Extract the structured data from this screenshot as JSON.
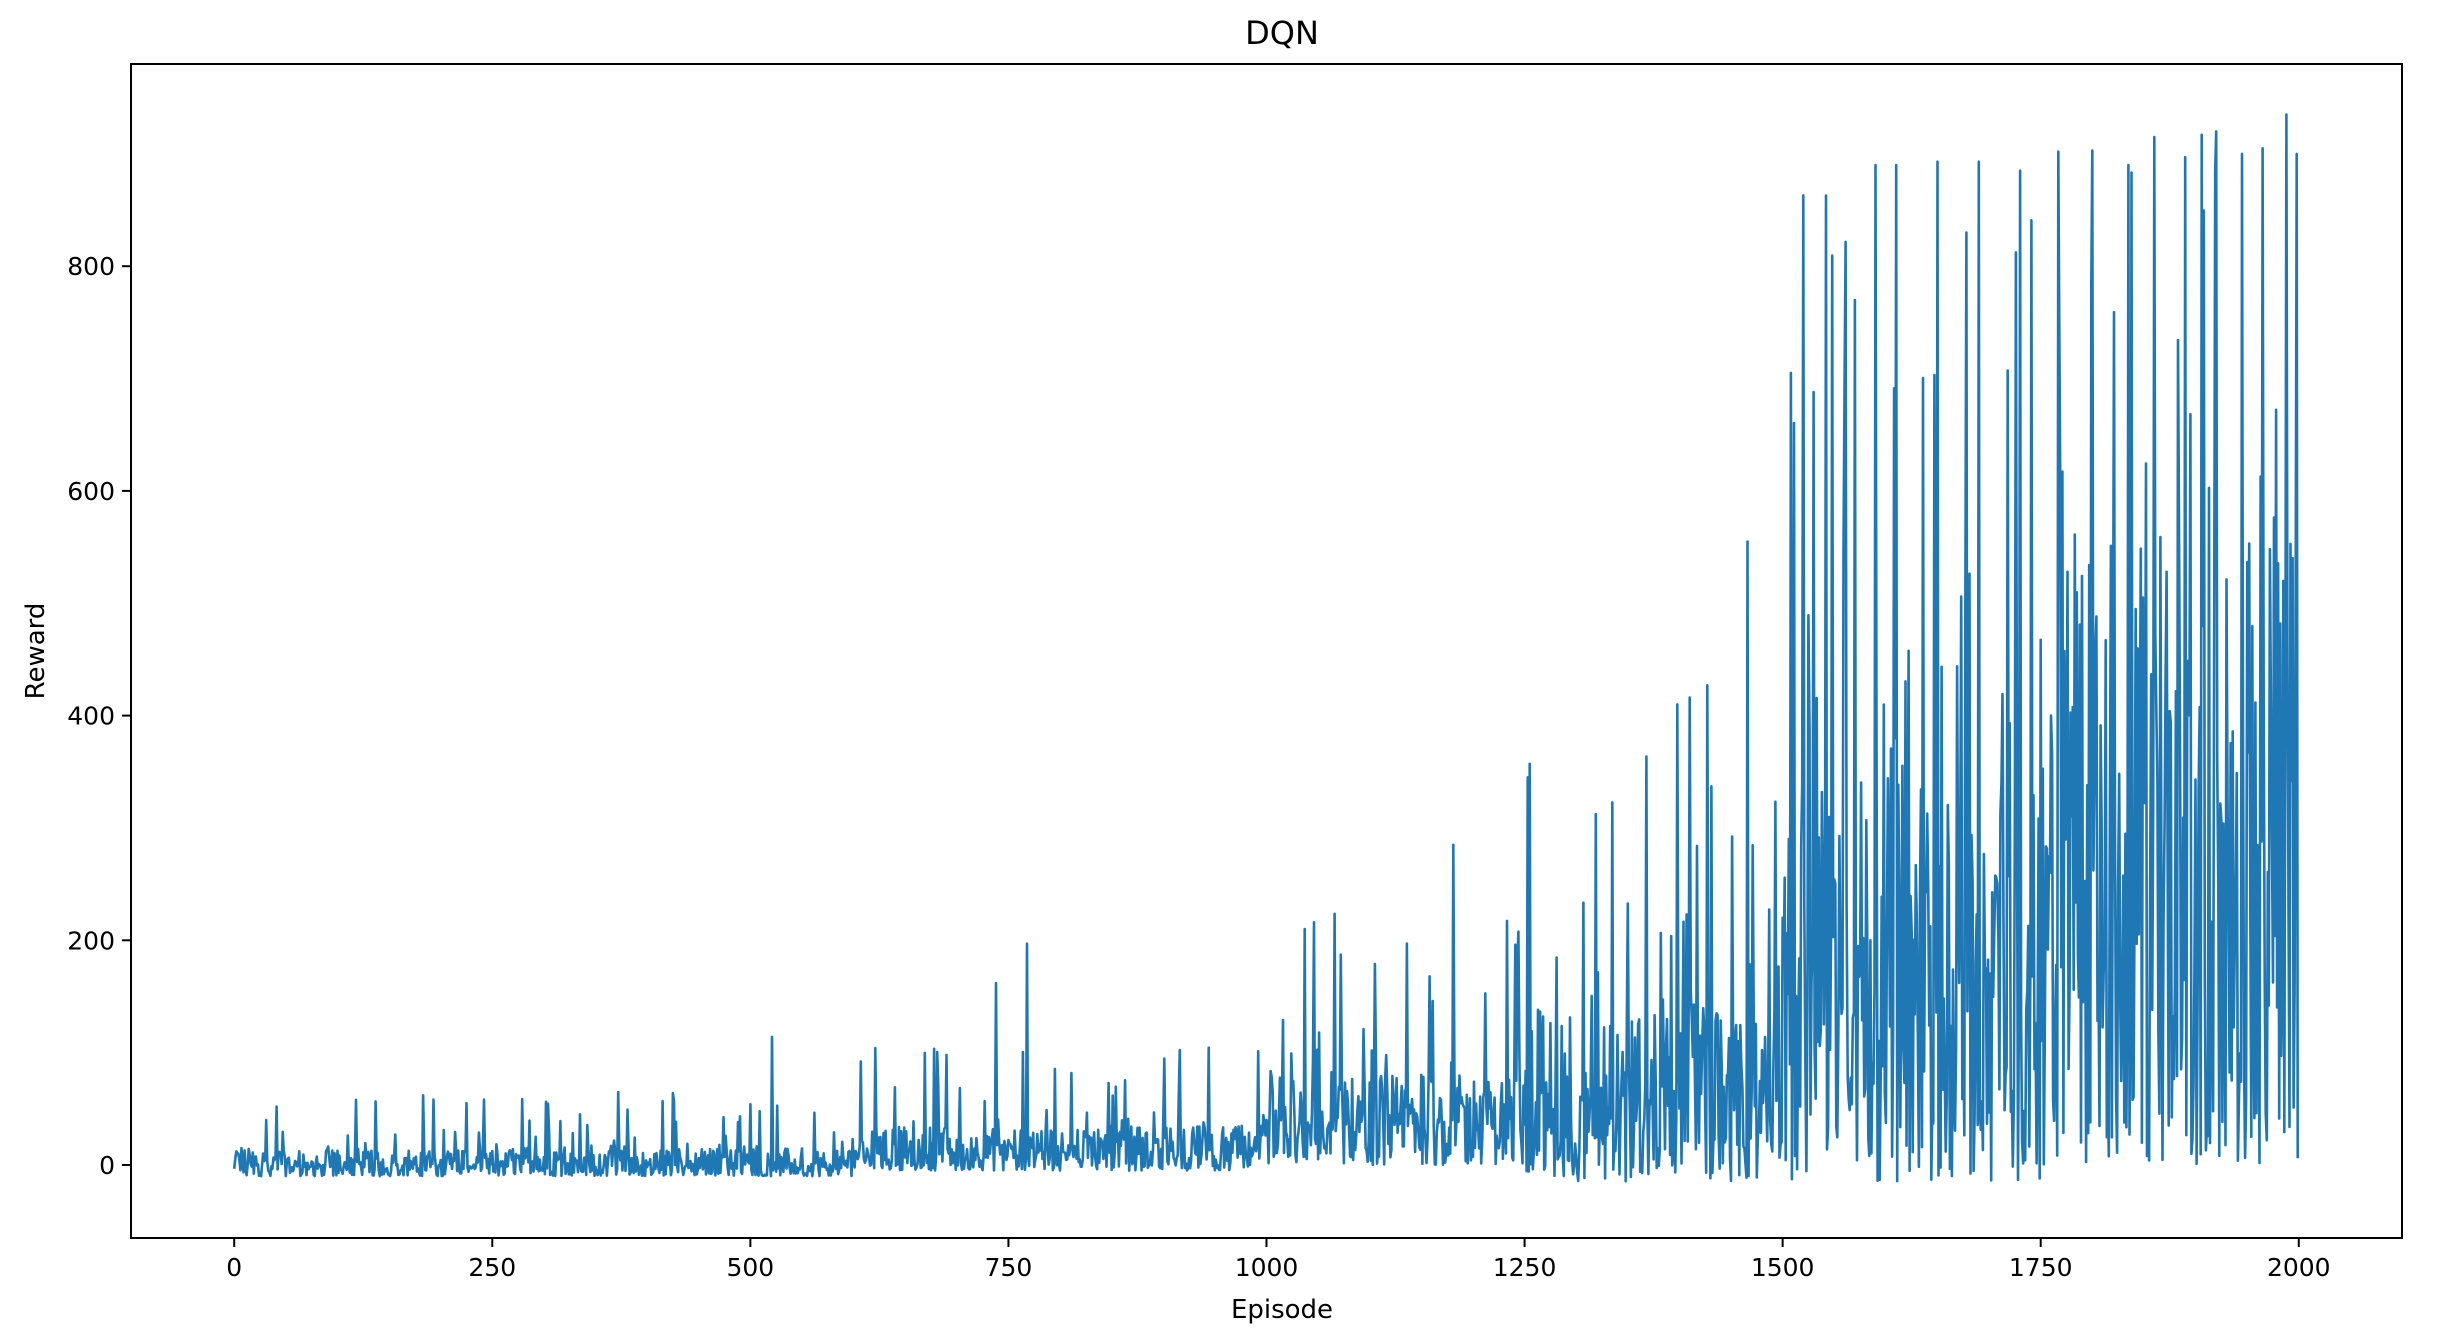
{
  "chart_data": {
    "type": "line",
    "title": "DQN",
    "xlabel": "Episode",
    "ylabel": "Reward",
    "xlim": [
      -100,
      2100
    ],
    "ylim": [
      -65,
      980
    ],
    "xticks": [
      0,
      250,
      500,
      750,
      1000,
      1250,
      1500,
      1750,
      2000
    ],
    "xtick_labels": [
      "0",
      "250",
      "500",
      "750",
      "1000",
      "1250",
      "1500",
      "1750",
      "2000"
    ],
    "yticks": [
      0,
      200,
      400,
      600,
      800
    ],
    "ytick_labels": [
      "0",
      "200",
      "400",
      "600",
      "800"
    ],
    "grid": false,
    "legend": "none",
    "series": [
      {
        "color": "#1f77b4",
        "x_start": 0,
        "x_step": 1,
        "count": 2000,
        "regimes": [
          {
            "x": [
              0,
              600
            ],
            "low": -10,
            "typical": 15,
            "spike_max": 60
          },
          {
            "x": [
              600,
              1000
            ],
            "low": -5,
            "typical": 35,
            "spike_max": 110
          },
          {
            "x": [
              1000,
              1250
            ],
            "low": 0,
            "typical": 80,
            "spike_max": 230
          },
          {
            "x": [
              1250,
              1500
            ],
            "low": -15,
            "typical": 140,
            "spike_max": 420
          },
          {
            "x": [
              1500,
              1750
            ],
            "low": -15,
            "typical": 350,
            "spike_max": 890
          },
          {
            "x": [
              1750,
              2000
            ],
            "low": 0,
            "typical": 560,
            "spike_max": 935
          }
        ],
        "peaks": [
          {
            "x": 41,
            "y": 52
          },
          {
            "x": 118,
            "y": 58
          },
          {
            "x": 183,
            "y": 62
          },
          {
            "x": 372,
            "y": 65
          },
          {
            "x": 425,
            "y": 64
          },
          {
            "x": 521,
            "y": 114
          },
          {
            "x": 690,
            "y": 98
          },
          {
            "x": 738,
            "y": 162
          },
          {
            "x": 768,
            "y": 197
          },
          {
            "x": 1037,
            "y": 210
          },
          {
            "x": 1105,
            "y": 179
          },
          {
            "x": 1181,
            "y": 285
          },
          {
            "x": 1253,
            "y": 345
          },
          {
            "x": 1398,
            "y": 410
          },
          {
            "x": 1427,
            "y": 427
          },
          {
            "x": 1466,
            "y": 555
          },
          {
            "x": 1508,
            "y": 705
          },
          {
            "x": 1520,
            "y": 863
          },
          {
            "x": 1530,
            "y": 688
          },
          {
            "x": 1560,
            "y": 700
          },
          {
            "x": 1590,
            "y": 890
          },
          {
            "x": 1610,
            "y": 890
          },
          {
            "x": 1650,
            "y": 893
          },
          {
            "x": 1690,
            "y": 893
          },
          {
            "x": 1730,
            "y": 885
          },
          {
            "x": 1767,
            "y": 902
          },
          {
            "x": 1800,
            "y": 903
          },
          {
            "x": 1835,
            "y": 890
          },
          {
            "x": 1860,
            "y": 915
          },
          {
            "x": 1890,
            "y": 897
          },
          {
            "x": 1920,
            "y": 920
          },
          {
            "x": 1945,
            "y": 900
          },
          {
            "x": 1965,
            "y": 905
          },
          {
            "x": 1988,
            "y": 935
          },
          {
            "x": 1998,
            "y": 900
          }
        ]
      }
    ]
  }
}
